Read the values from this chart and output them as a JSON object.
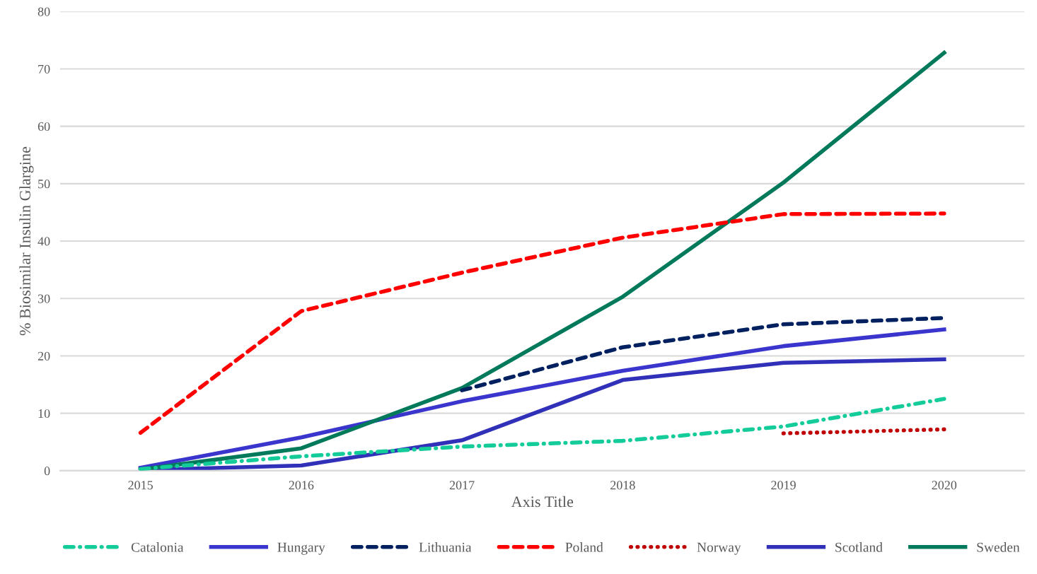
{
  "chart_data": {
    "type": "line",
    "xlabel": "Axis Title",
    "ylabel": "% Biosimilar Insulin Glargine",
    "categories": [
      "2015",
      "2016",
      "2017",
      "2018",
      "2019",
      "2020"
    ],
    "ylim": [
      0,
      80
    ],
    "yticks": [
      0,
      10,
      20,
      30,
      40,
      50,
      60,
      70,
      80
    ],
    "grid": "y",
    "legend": "bottom",
    "series": [
      {
        "name": "Catalonia",
        "color": "#14cc99",
        "line_style": "dashdot",
        "values": [
          0.3,
          2.5,
          4.2,
          5.2,
          7.7,
          12.5
        ]
      },
      {
        "name": "Hungary",
        "color": "#3a35cc",
        "line_style": "solid",
        "values": [
          0.5,
          5.8,
          12.1,
          17.4,
          21.7,
          24.6
        ]
      },
      {
        "name": "Lithuania",
        "color": "#002060",
        "line_style": "dashed",
        "values": [
          null,
          null,
          14.0,
          21.5,
          25.5,
          26.6
        ]
      },
      {
        "name": "Poland",
        "color": "#ff0000",
        "line_style": "dashed",
        "values": [
          6.6,
          27.8,
          34.5,
          40.6,
          44.7,
          44.8
        ]
      },
      {
        "name": "Norway",
        "color": "#c00000",
        "line_style": "dotted",
        "values": [
          null,
          null,
          null,
          null,
          6.5,
          7.2
        ]
      },
      {
        "name": "Scotland",
        "color": "#3030b8",
        "line_style": "solid",
        "values": [
          0.1,
          0.9,
          5.3,
          15.8,
          18.8,
          19.4
        ]
      },
      {
        "name": "Sweden",
        "color": "#007a5a",
        "line_style": "solid",
        "values": [
          0.2,
          3.9,
          14.4,
          30.3,
          50.2,
          72.8
        ]
      }
    ]
  }
}
